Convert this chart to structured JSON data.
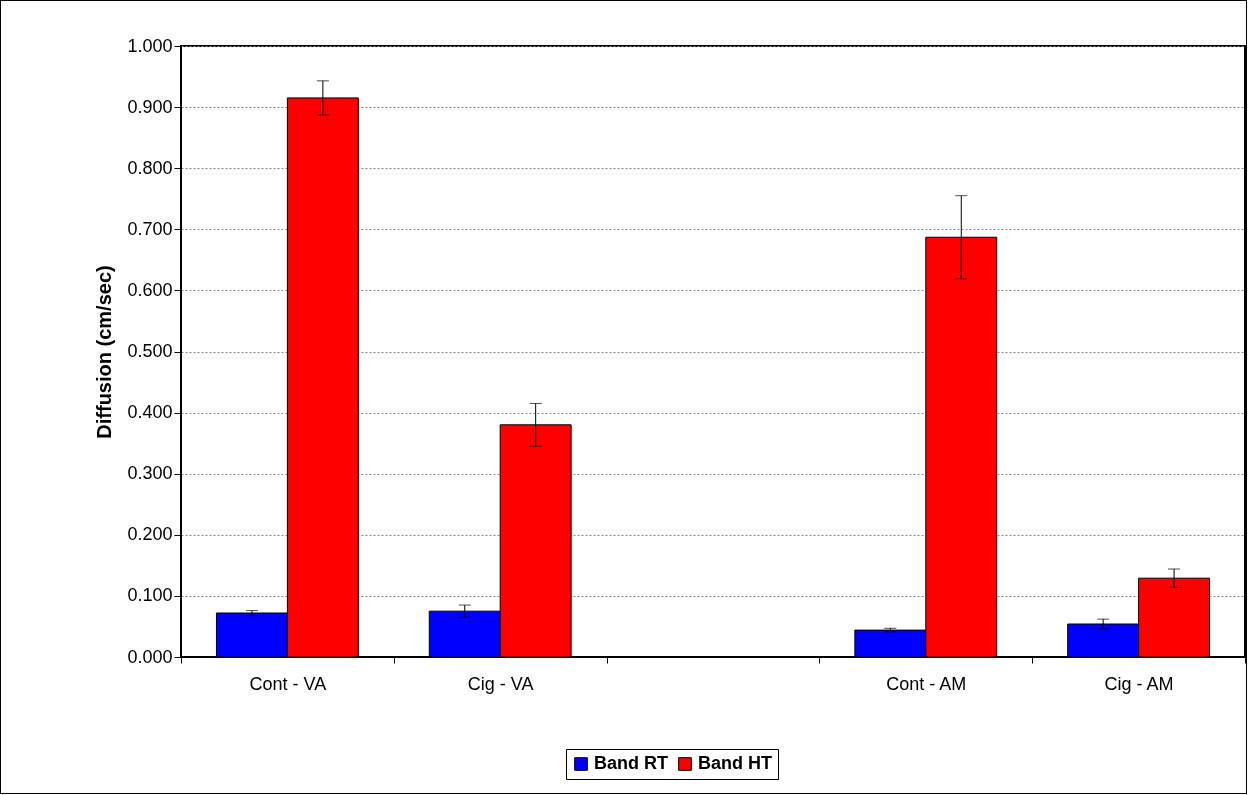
{
  "chart_data": {
    "type": "bar",
    "ylabel": "Diffusion (cm/sec)",
    "categories": [
      "Cont - VA",
      "Cig - VA",
      null,
      "Cont - AM",
      "Cig - AM"
    ],
    "series": [
      {
        "name": "Band RT",
        "color": "#0000ff",
        "values": [
          0.072,
          0.075,
          null,
          0.044,
          0.054
        ],
        "errors": [
          0.004,
          0.01,
          null,
          0.003,
          0.008
        ]
      },
      {
        "name": "Band HT",
        "color": "#ff0000",
        "values": [
          0.915,
          0.38,
          null,
          0.687,
          0.129
        ],
        "errors": [
          0.028,
          0.035,
          null,
          0.068,
          0.015
        ]
      }
    ],
    "ylim": [
      0,
      1
    ],
    "yticks": [
      {
        "value": 0,
        "label": "0.000"
      },
      {
        "value": 0.1,
        "label": "0.100"
      },
      {
        "value": 0.2,
        "label": "0.200"
      },
      {
        "value": 0.3,
        "label": "0.300"
      },
      {
        "value": 0.4,
        "label": "0.400"
      },
      {
        "value": 0.5,
        "label": "0.500"
      },
      {
        "value": 0.6,
        "label": "0.600"
      },
      {
        "value": 0.7,
        "label": "0.700"
      },
      {
        "value": 0.8,
        "label": "0.800"
      },
      {
        "value": 0.9,
        "label": "0.900"
      },
      {
        "value": 1,
        "label": "1.000"
      }
    ],
    "grid": "y",
    "legend": "bottom"
  }
}
